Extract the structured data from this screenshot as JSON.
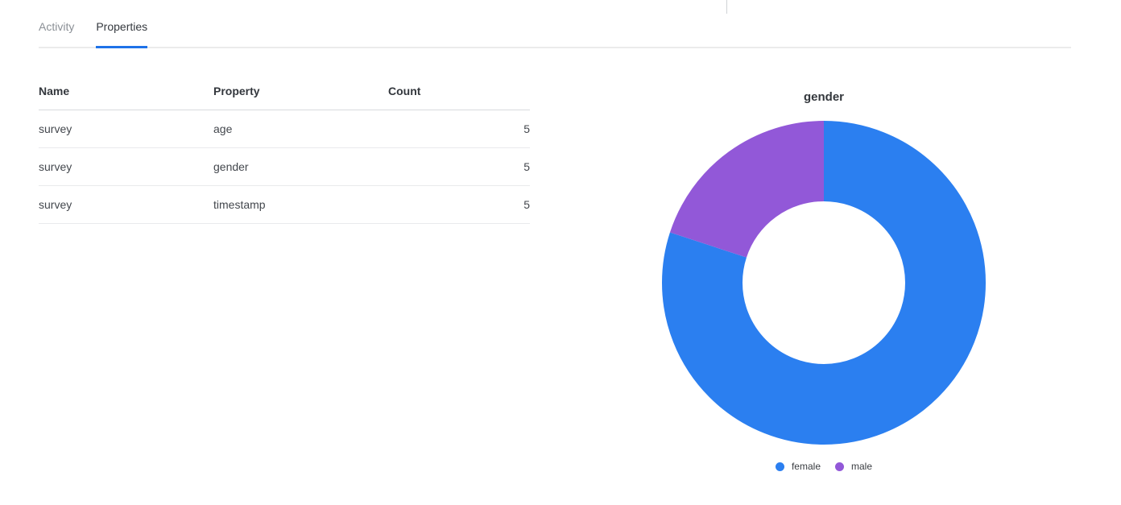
{
  "tabs": {
    "items": [
      {
        "label": "Activity",
        "active": false
      },
      {
        "label": "Properties",
        "active": true
      }
    ],
    "active_underline_color": "#1e72e8",
    "active_text_color": "#35393f",
    "inactive_text_color": "#8b9096"
  },
  "table": {
    "columns": [
      "Name",
      "Property",
      "Count"
    ],
    "rows": [
      {
        "name": "survey",
        "property": "age",
        "count": "5"
      },
      {
        "name": "survey",
        "property": "gender",
        "count": "5"
      },
      {
        "name": "survey",
        "property": "timestamp",
        "count": "5"
      }
    ]
  },
  "chart_data": {
    "type": "pie",
    "subtype": "doughnut",
    "title": "gender",
    "labels": [
      "female",
      "male"
    ],
    "values": [
      4,
      1
    ],
    "percentages": [
      80,
      20
    ],
    "total": 5,
    "colors": [
      "#2b7ff0",
      "#9258d8"
    ],
    "cutout_ratio": 0.5,
    "start_angle_deg": 0,
    "direction": "clockwise",
    "legend_position": "bottom"
  }
}
